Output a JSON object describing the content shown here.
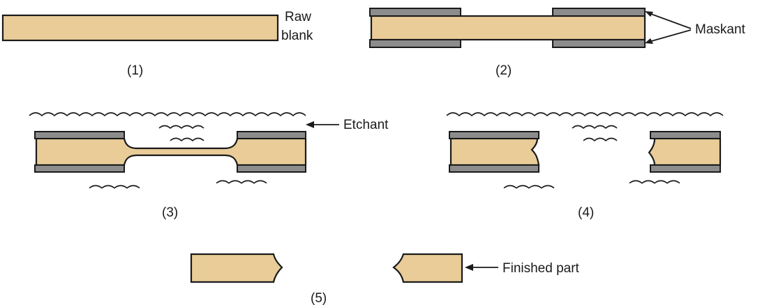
{
  "labels": {
    "raw_blank_line1": "Raw",
    "raw_blank_line2": "blank",
    "maskant": "Maskant",
    "etchant": "Etchant",
    "finished_part": "Finished part"
  },
  "steps": [
    "(1)",
    "(2)",
    "(3)",
    "(4)",
    "(5)"
  ],
  "colors": {
    "blank": "#e9cc98",
    "maskant": "#8c8c8c",
    "outline": "#1a1a1a"
  }
}
